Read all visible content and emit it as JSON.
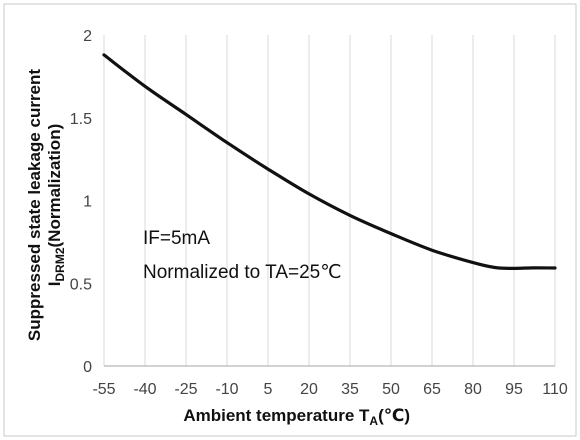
{
  "chart_data": {
    "type": "line",
    "xlabel": {
      "text": "Ambient temperature T",
      "sub": "A",
      "unit": "(℃)"
    },
    "ylabel": {
      "line1": "Suppressed state leakage current",
      "line2_main": "I",
      "line2_sub": "DRM2",
      "line2_tail": "(Normalization)"
    },
    "x_ticks": [
      -55,
      -40,
      -25,
      -10,
      5,
      20,
      35,
      50,
      65,
      80,
      95,
      110
    ],
    "x_tick_labels": [
      "-55",
      "-40",
      "-25",
      "-10",
      "5",
      "20",
      "35",
      "50",
      "65",
      "80",
      "95",
      "110"
    ],
    "y_ticks": [
      0,
      0.5,
      1,
      1.5,
      2
    ],
    "y_tick_labels": [
      "0",
      "0.5",
      "1",
      "1.5",
      "2"
    ],
    "xlim": [
      -55,
      110
    ],
    "ylim": [
      0,
      2
    ],
    "grid": {
      "vertical": true,
      "horizontal": false
    },
    "annotations": [
      "IF=5mA",
      "Normalized to TA=25℃"
    ],
    "series": [
      {
        "color": "#111111",
        "x": [
          -55,
          -40,
          -25,
          -10,
          5,
          20,
          35,
          50,
          65,
          80,
          88,
          95,
          102,
          110
        ],
        "y": [
          1.88,
          1.69,
          1.52,
          1.35,
          1.19,
          1.04,
          0.91,
          0.8,
          0.7,
          0.625,
          0.595,
          0.59,
          0.593,
          0.592
        ]
      }
    ]
  }
}
